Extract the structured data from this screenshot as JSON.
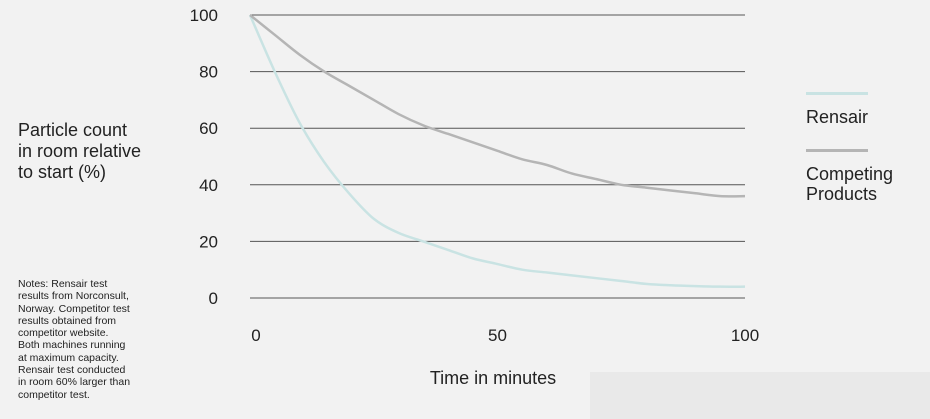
{
  "chart_data": {
    "type": "line",
    "title": "",
    "ylabel": "Particle count\nin room relative\nto start (%)",
    "xlabel": "Time in minutes",
    "xlim": [
      0,
      100
    ],
    "ylim": [
      0,
      100
    ],
    "yticks": [
      "0",
      "20",
      "40",
      "60",
      "80",
      "100"
    ],
    "xticks": [
      "0",
      "50",
      "100"
    ],
    "grid": true,
    "legend_position": "right",
    "series": [
      {
        "name": "Rensair",
        "color": "#c9e3e3",
        "x": [
          0,
          5,
          10,
          15,
          20,
          25,
          30,
          35,
          40,
          45,
          50,
          55,
          60,
          65,
          70,
          75,
          80,
          85,
          90,
          95,
          100
        ],
        "y": [
          100,
          80,
          62,
          48,
          37,
          28,
          23,
          20,
          17,
          14,
          12,
          10,
          9,
          8,
          7,
          6,
          5,
          4.5,
          4.2,
          4,
          4
        ]
      },
      {
        "name": "Competing\nProducts",
        "color": "#b5b5b5",
        "x": [
          0,
          5,
          10,
          15,
          20,
          25,
          30,
          35,
          40,
          45,
          50,
          55,
          60,
          65,
          70,
          75,
          80,
          85,
          90,
          95,
          100
        ],
        "y": [
          100,
          93,
          86,
          80,
          75,
          70,
          65,
          61,
          58,
          55,
          52,
          49,
          47,
          44,
          42,
          40,
          39,
          38,
          37,
          36,
          36
        ]
      }
    ]
  },
  "notes": "Notes: Rensair test\nresults from Norconsult,\nNorway. Competitor test\nresults obtained from\ncompetitor website.\nBoth machines running\nat maximum capacity.\nRensair test conducted\nin room 60% larger than\ncompetitor test."
}
